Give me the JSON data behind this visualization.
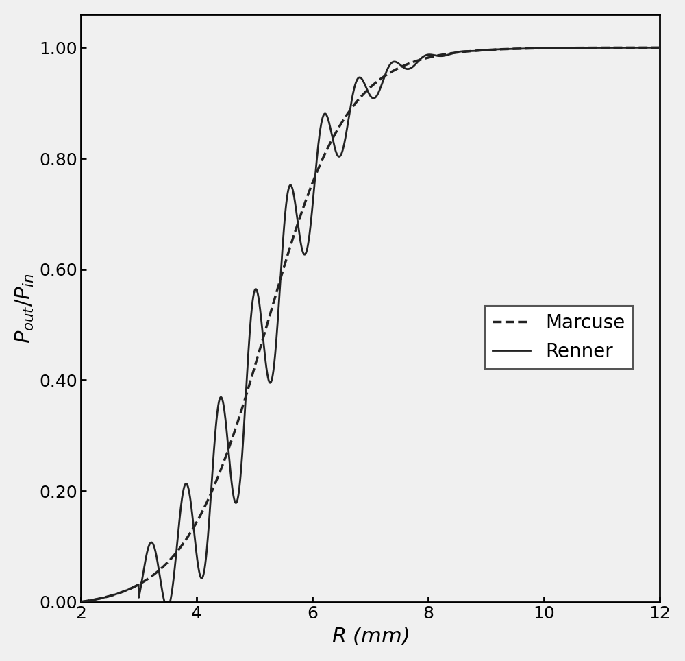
{
  "title": "",
  "xlabel": "R (mm)",
  "ylabel": "P_{out}/P_{in}",
  "xlim": [
    2,
    12
  ],
  "ylim": [
    0.0,
    1.05
  ],
  "yticks": [
    0.0,
    0.2,
    0.4,
    0.6,
    0.8,
    1.0
  ],
  "xticks": [
    2,
    4,
    6,
    8,
    10,
    12
  ],
  "background_color": "#f5f5f5",
  "line_color": "#222222",
  "legend_labels": [
    "Marcuse",
    "Renner"
  ],
  "marcuse_linewidth": 2.0,
  "renner_linewidth": 2.0,
  "figsize": [
    10.0,
    9.64
  ],
  "dpi": 100
}
